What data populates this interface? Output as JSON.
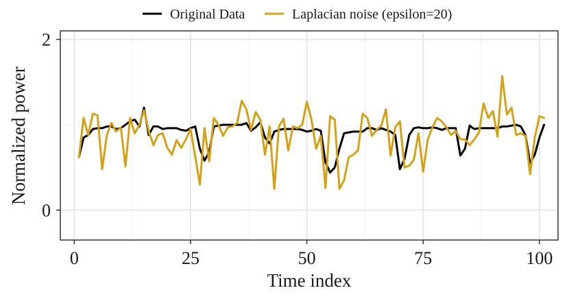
{
  "chart_data": {
    "type": "line",
    "title": "",
    "xlabel": "Time index",
    "ylabel": "Normalized power",
    "xlim": [
      -3,
      104
    ],
    "ylim": [
      -0.35,
      2.1
    ],
    "x_ticks": [
      0,
      25,
      50,
      75,
      100
    ],
    "x_tick_labels": [
      "0",
      "25",
      "50",
      "75",
      "100"
    ],
    "y_ticks": [
      0,
      2
    ],
    "y_tick_labels": [
      "0",
      "2"
    ],
    "grid": true,
    "legend_position": "top",
    "x_start": 1,
    "series": [
      {
        "name": "Original Data",
        "color": "#000000",
        "values": [
          0.62,
          0.85,
          0.88,
          0.95,
          0.96,
          0.96,
          0.98,
          0.98,
          0.95,
          0.96,
          1.0,
          1.04,
          1.06,
          0.98,
          1.2,
          0.88,
          0.98,
          0.98,
          0.95,
          0.96,
          0.96,
          0.96,
          0.94,
          0.93,
          0.96,
          0.98,
          0.72,
          0.58,
          0.68,
          0.98,
          0.99,
          1.0,
          1.0,
          1.0,
          1.0,
          1.0,
          1.02,
          0.93,
          0.97,
          1.03,
          0.85,
          0.78,
          0.92,
          0.94,
          0.95,
          0.95,
          0.95,
          0.95,
          0.94,
          0.92,
          0.93,
          0.95,
          0.93,
          0.56,
          0.44,
          0.5,
          0.72,
          0.9,
          0.91,
          0.92,
          0.92,
          0.92,
          0.96,
          0.96,
          0.94,
          0.96,
          0.94,
          0.92,
          0.88,
          0.48,
          0.6,
          0.88,
          0.96,
          0.97,
          0.96,
          0.96,
          0.97,
          0.96,
          0.94,
          0.96,
          0.96,
          0.96,
          0.64,
          0.72,
          0.99,
          0.95,
          0.96,
          0.96,
          0.96,
          0.96,
          0.96,
          0.98,
          0.98,
          0.99,
          1.0,
          0.98,
          0.88,
          0.55,
          0.65,
          0.85,
          1.0
        ]
      },
      {
        "name": "Laplacian noise (epsilon=20)",
        "color": "#D4A017",
        "values": [
          0.62,
          1.08,
          0.88,
          1.13,
          1.11,
          0.48,
          0.88,
          1.02,
          0.92,
          0.97,
          0.51,
          1.08,
          0.9,
          1.0,
          1.17,
          0.93,
          0.76,
          0.88,
          0.9,
          0.73,
          0.65,
          0.82,
          0.73,
          0.83,
          0.95,
          0.63,
          0.3,
          0.96,
          0.57,
          1.08,
          1.0,
          0.87,
          0.97,
          0.98,
          1.02,
          1.28,
          1.18,
          0.94,
          1.15,
          1.06,
          0.65,
          0.98,
          0.25,
          0.98,
          1.07,
          0.7,
          0.98,
          0.96,
          1.0,
          1.27,
          1.06,
          0.72,
          0.87,
          0.26,
          1.1,
          1.06,
          0.25,
          0.35,
          0.62,
          0.65,
          0.7,
          1.13,
          1.08,
          0.87,
          0.94,
          0.99,
          1.18,
          0.64,
          0.97,
          1.04,
          0.5,
          0.52,
          0.59,
          0.9,
          0.45,
          0.83,
          0.97,
          1.08,
          1.04,
          0.97,
          0.88,
          0.93,
          0.83,
          0.83,
          0.76,
          0.83,
          0.91,
          1.25,
          1.08,
          1.16,
          0.86,
          1.57,
          1.12,
          1.2,
          0.88,
          0.9,
          0.87,
          0.42,
          0.85,
          1.1,
          1.08
        ]
      }
    ]
  }
}
